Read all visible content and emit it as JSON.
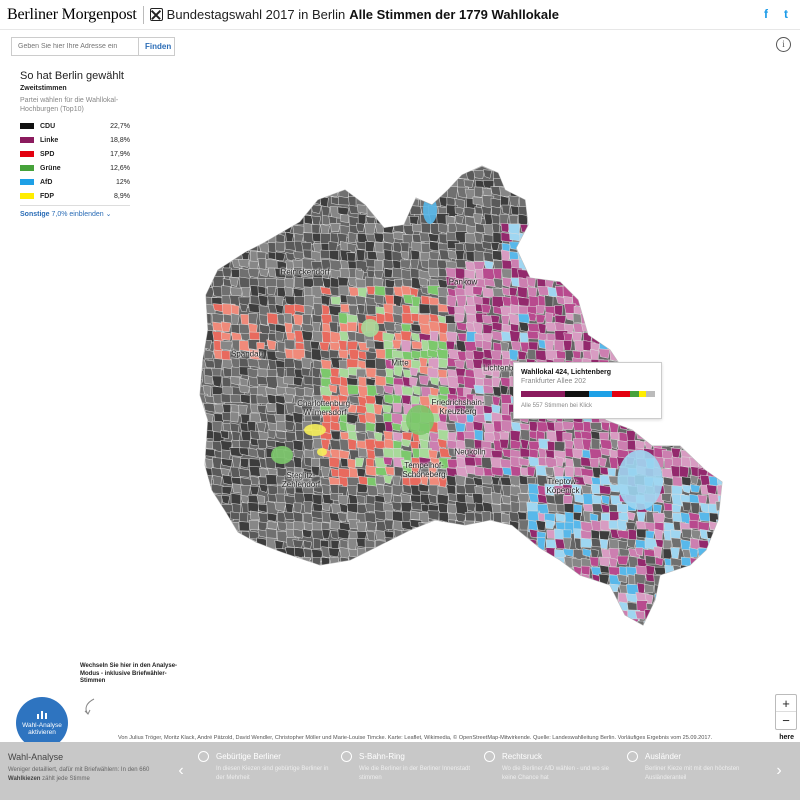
{
  "header": {
    "brand": "Berliner Morgenpost",
    "title_light": "Bundestagswahl 2017 in Berlin",
    "title_bold": "Alle Stimmen der 1779 Wahllokale",
    "social": [
      "f",
      "t"
    ]
  },
  "search": {
    "placeholder": "Geben Sie hier Ihre Adresse ein",
    "button": "Finden"
  },
  "info_icon": "info-icon",
  "legend": {
    "title": "So hat Berlin gewählt",
    "subtitle": "Zweitstimmen",
    "description": "Partei wählen für die Wahllokal-Hochburgen (Top10)",
    "parties": [
      {
        "name": "CDU",
        "value": "22,7%",
        "color": "#111111"
      },
      {
        "name": "Linke",
        "value": "18,8%",
        "color": "#8b1b5e"
      },
      {
        "name": "SPD",
        "value": "17,9%",
        "color": "#e3000f"
      },
      {
        "name": "Grüne",
        "value": "12,6%",
        "color": "#46a23a"
      },
      {
        "name": "AfD",
        "value": "12%",
        "color": "#1ea0e6"
      },
      {
        "name": "FDP",
        "value": "8,9%",
        "color": "#ffed00"
      }
    ],
    "more_label": "Sonstige",
    "more_value": "7,0% einblenden"
  },
  "districts": [
    {
      "name": "Reinickendorf"
    },
    {
      "name": "Pankow"
    },
    {
      "name": "Spandau"
    },
    {
      "name": "Mitte"
    },
    {
      "name": "Lichtenberg"
    },
    {
      "name": "Charlottenburg-\nWilmersdorf"
    },
    {
      "name": "Friedrichshain-\nKreuzberg"
    },
    {
      "name": "Neukölln"
    },
    {
      "name": "Tempelhof-\nSchöneberg"
    },
    {
      "name": "Steglitz-\nZehlendorf"
    },
    {
      "name": "Treptow-\nKöpenick"
    }
  ],
  "tooltip": {
    "title": "Wahllokal 424, Lichtenberg",
    "address": "Frankfurter Allee 202",
    "bar": [
      {
        "party": "Linke",
        "share": 0.33,
        "color": "#8b1b5e"
      },
      {
        "party": "CDU",
        "share": 0.18,
        "color": "#111111"
      },
      {
        "party": "AfD",
        "share": 0.17,
        "color": "#1ea0e6"
      },
      {
        "party": "SPD",
        "share": 0.13,
        "color": "#e3000f"
      },
      {
        "party": "Grüne",
        "share": 0.07,
        "color": "#46a23a"
      },
      {
        "party": "FDP",
        "share": 0.05,
        "color": "#ffed00"
      },
      {
        "party": "Sonstige",
        "share": 0.07,
        "color": "#bbbbbb"
      }
    ],
    "hint": "Alle 557 Stimmen bei Klick"
  },
  "zoom": {
    "in": "+",
    "out": "−"
  },
  "switch_note": "Wechseln Sie hier in den Analyse-Modus - inklusive Briefwähler-Stimmen",
  "analysis_button": "Wahl-Analyse aktivieren",
  "credits": {
    "text": "Von Julius Tröger, Moritz Klack, André Pätzold, David Wendler, Christopher Möller und Marie-Louise Timcke. Karte: Leaflet, Wikimedia, © OpenStreetMap-Mitwirkende. Quelle: Landeswahlleitung Berlin. Vorläufiges Ergebnis vom 25.09.2017.",
    "here": "here"
  },
  "bottom_bar": {
    "first": {
      "heading": "Wahl-Analyse",
      "text_a": "Weniger detailliert, dafür mit Briefwählern: In den 660",
      "text_bold": "Wahlkiezen",
      "text_b": "zählt jede Stimme"
    },
    "items": [
      {
        "heading": "Gebürtige Berliner",
        "text": "In diesen Kiezen sind gebürtige Berliner in der Mehrheit"
      },
      {
        "heading": "S-Bahn-Ring",
        "text": "Wie die Berliner in der Berliner Innenstadt stimmen"
      },
      {
        "heading": "Rechtsruck",
        "text": "Wo die Berliner AfD wählen - und wo sie keine Chance hat"
      },
      {
        "heading": "Ausländer",
        "text": "Berliner Kieze mit mit den höchsten Ausländeranteil"
      }
    ]
  },
  "map_colors": {
    "cdu": [
      "#3d3d3d",
      "#5a5a5a",
      "#707070",
      "#878787"
    ],
    "linke": [
      "#b84a8e",
      "#cc7fb0",
      "#d89cc2",
      "#93296d"
    ],
    "spd": [
      "#f08a7a",
      "#e86a5e"
    ],
    "gruene": [
      "#7cc86c",
      "#a8d99a"
    ],
    "afd": [
      "#58b8ea",
      "#9fd6f1"
    ],
    "fdp": [
      "#f6ee5a"
    ]
  }
}
